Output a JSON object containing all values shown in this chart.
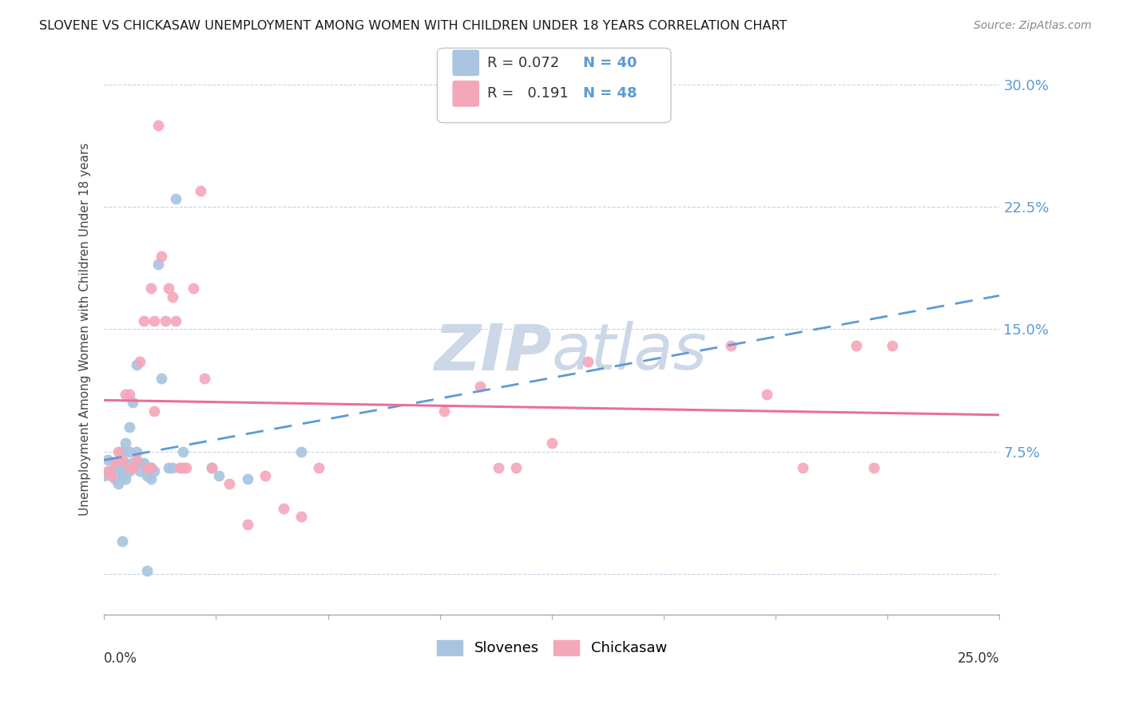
{
  "title": "SLOVENE VS CHICKASAW UNEMPLOYMENT AMONG WOMEN WITH CHILDREN UNDER 18 YEARS CORRELATION CHART",
  "source": "Source: ZipAtlas.com",
  "ylabel": "Unemployment Among Women with Children Under 18 years",
  "xlim": [
    0.0,
    0.25
  ],
  "ylim": [
    -0.025,
    0.325
  ],
  "yticks": [
    0.0,
    0.075,
    0.15,
    0.225,
    0.3
  ],
  "ytick_labels": [
    "",
    "7.5%",
    "15.0%",
    "22.5%",
    "30.0%"
  ],
  "legend_slovene_r": "0.072",
  "legend_slovene_n": "40",
  "legend_chickasaw_r": "0.191",
  "legend_chickasaw_n": "48",
  "slovene_color": "#a8c4e0",
  "chickasaw_color": "#f4a7b9",
  "slovene_line_color": "#5b9bd5",
  "chickasaw_line_color": "#e8709a",
  "background_color": "#ffffff",
  "watermark_color": "#ccd8e8",
  "slovene_points": [
    [
      0.0,
      0.06
    ],
    [
      0.001,
      0.07
    ],
    [
      0.002,
      0.063
    ],
    [
      0.003,
      0.058
    ],
    [
      0.003,
      0.065
    ],
    [
      0.004,
      0.068
    ],
    [
      0.004,
      0.055
    ],
    [
      0.005,
      0.075
    ],
    [
      0.005,
      0.063
    ],
    [
      0.005,
      0.06
    ],
    [
      0.006,
      0.08
    ],
    [
      0.006,
      0.068
    ],
    [
      0.006,
      0.058
    ],
    [
      0.007,
      0.09
    ],
    [
      0.007,
      0.075
    ],
    [
      0.007,
      0.063
    ],
    [
      0.008,
      0.105
    ],
    [
      0.008,
      0.068
    ],
    [
      0.009,
      0.128
    ],
    [
      0.009,
      0.075
    ],
    [
      0.01,
      0.068
    ],
    [
      0.01,
      0.063
    ],
    [
      0.011,
      0.068
    ],
    [
      0.012,
      0.065
    ],
    [
      0.012,
      0.06
    ],
    [
      0.013,
      0.065
    ],
    [
      0.013,
      0.058
    ],
    [
      0.014,
      0.063
    ],
    [
      0.015,
      0.19
    ],
    [
      0.016,
      0.12
    ],
    [
      0.018,
      0.065
    ],
    [
      0.019,
      0.065
    ],
    [
      0.02,
      0.23
    ],
    [
      0.022,
      0.075
    ],
    [
      0.03,
      0.065
    ],
    [
      0.032,
      0.06
    ],
    [
      0.04,
      0.058
    ],
    [
      0.055,
      0.075
    ],
    [
      0.005,
      0.02
    ],
    [
      0.012,
      0.002
    ]
  ],
  "chickasaw_points": [
    [
      0.001,
      0.063
    ],
    [
      0.002,
      0.06
    ],
    [
      0.003,
      0.068
    ],
    [
      0.004,
      0.075
    ],
    [
      0.005,
      0.07
    ],
    [
      0.006,
      0.11
    ],
    [
      0.007,
      0.11
    ],
    [
      0.007,
      0.065
    ],
    [
      0.008,
      0.065
    ],
    [
      0.009,
      0.07
    ],
    [
      0.01,
      0.13
    ],
    [
      0.011,
      0.155
    ],
    [
      0.012,
      0.065
    ],
    [
      0.013,
      0.175
    ],
    [
      0.013,
      0.065
    ],
    [
      0.014,
      0.155
    ],
    [
      0.014,
      0.1
    ],
    [
      0.015,
      0.275
    ],
    [
      0.016,
      0.195
    ],
    [
      0.017,
      0.155
    ],
    [
      0.018,
      0.175
    ],
    [
      0.019,
      0.17
    ],
    [
      0.02,
      0.155
    ],
    [
      0.021,
      0.065
    ],
    [
      0.022,
      0.065
    ],
    [
      0.023,
      0.065
    ],
    [
      0.025,
      0.175
    ],
    [
      0.027,
      0.235
    ],
    [
      0.028,
      0.12
    ],
    [
      0.03,
      0.065
    ],
    [
      0.035,
      0.055
    ],
    [
      0.04,
      0.03
    ],
    [
      0.045,
      0.06
    ],
    [
      0.05,
      0.04
    ],
    [
      0.055,
      0.035
    ],
    [
      0.06,
      0.065
    ],
    [
      0.095,
      0.1
    ],
    [
      0.105,
      0.115
    ],
    [
      0.11,
      0.065
    ],
    [
      0.115,
      0.065
    ],
    [
      0.125,
      0.08
    ],
    [
      0.135,
      0.13
    ],
    [
      0.175,
      0.14
    ],
    [
      0.185,
      0.11
    ],
    [
      0.195,
      0.065
    ],
    [
      0.21,
      0.14
    ],
    [
      0.215,
      0.065
    ],
    [
      0.22,
      0.14
    ]
  ]
}
